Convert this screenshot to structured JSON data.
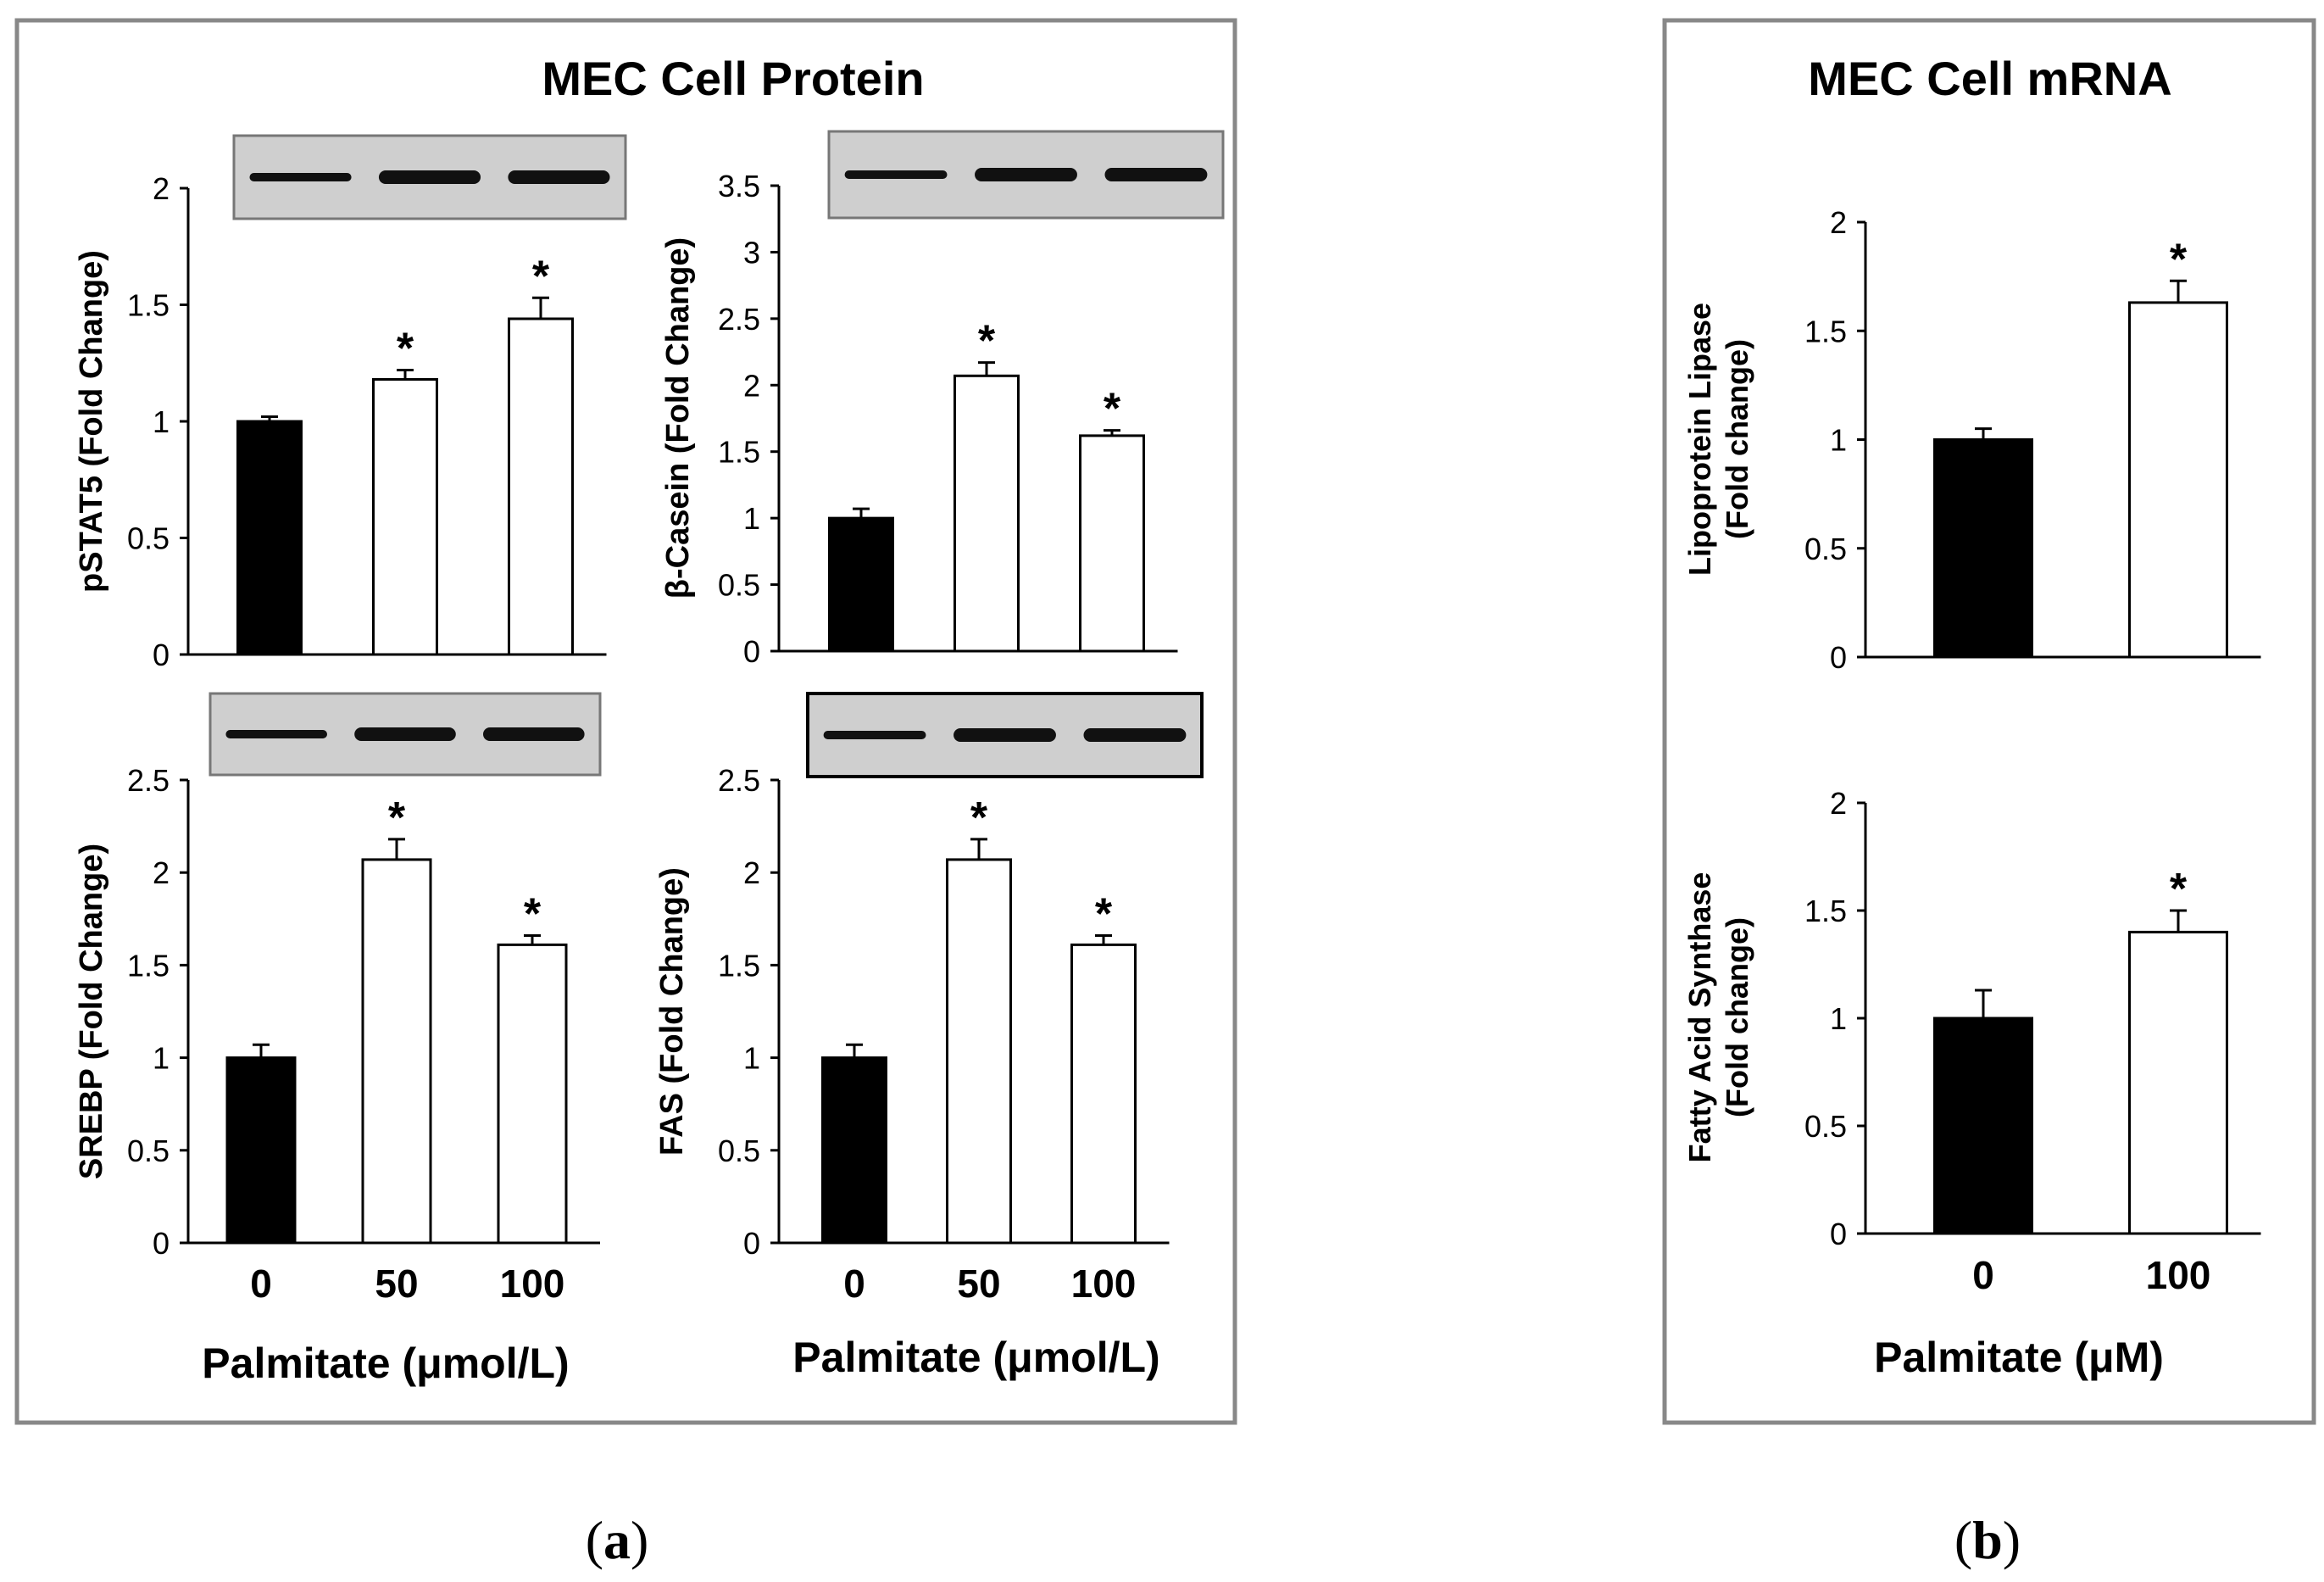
{
  "panel_a": {
    "title": "MEC Cell Protein",
    "xlabel": "Palmitate (μmol/L)",
    "caption": {
      "open": "(",
      "letter": "a",
      "close": ")"
    }
  },
  "panel_b": {
    "title": "MEC Cell mRNA",
    "xlabel": "Palmitate (μM)",
    "caption": {
      "open": "(",
      "letter": "b",
      "close": ")"
    }
  },
  "colors": {
    "control_bar": "#000000",
    "treated_bar": "#ffffff",
    "frame": "#888888",
    "blot_bg": "#cfcfcf",
    "band": "#111111"
  },
  "chart_data": [
    {
      "id": "pstat5",
      "type": "bar",
      "panel": "a",
      "ylabel": "pSTAT5 (Fold Change)",
      "categories": [
        "0",
        "50",
        "100"
      ],
      "values": [
        1.0,
        1.18,
        1.44
      ],
      "errors": [
        0.02,
        0.04,
        0.09
      ],
      "significant": [
        false,
        true,
        true
      ],
      "yticks": [
        "0",
        "0.5",
        "1",
        "1.5",
        "2"
      ],
      "ylim": [
        0,
        2
      ],
      "western_blot": true,
      "show_xticks": false
    },
    {
      "id": "casein",
      "type": "bar",
      "panel": "a",
      "ylabel": "β-Casein (Fold Change)",
      "categories": [
        "0",
        "50",
        "100"
      ],
      "values": [
        1.0,
        2.07,
        1.62
      ],
      "errors": [
        0.07,
        0.1,
        0.04
      ],
      "significant": [
        false,
        true,
        true
      ],
      "yticks": [
        "0",
        "0.5",
        "1",
        "1.5",
        "2",
        "2.5",
        "3",
        "3.5"
      ],
      "ylim": [
        0,
        3.5
      ],
      "western_blot": true,
      "show_xticks": false
    },
    {
      "id": "srebp",
      "type": "bar",
      "panel": "a",
      "ylabel": "SREBP (Fold Change)",
      "categories": [
        "0",
        "50",
        "100"
      ],
      "values": [
        1.0,
        2.07,
        1.61
      ],
      "errors": [
        0.07,
        0.11,
        0.05
      ],
      "significant": [
        false,
        true,
        true
      ],
      "yticks": [
        "0",
        "0.5",
        "1",
        "1.5",
        "2",
        "2.5"
      ],
      "ylim": [
        0,
        2.5
      ],
      "western_blot": true,
      "show_xticks": true
    },
    {
      "id": "fas",
      "type": "bar",
      "panel": "a",
      "ylabel": "FAS (Fold Change)",
      "categories": [
        "0",
        "50",
        "100"
      ],
      "values": [
        1.0,
        2.07,
        1.61
      ],
      "errors": [
        0.07,
        0.11,
        0.05
      ],
      "significant": [
        false,
        true,
        true
      ],
      "yticks": [
        "0",
        "0.5",
        "1",
        "1.5",
        "2",
        "2.5"
      ],
      "ylim": [
        0,
        2.5
      ],
      "western_blot": true,
      "show_xticks": true
    },
    {
      "id": "lpl",
      "type": "bar",
      "panel": "b",
      "ylabel": "Lipoprotein Lipase",
      "ylabel2": "(Fold change)",
      "categories": [
        "0",
        "100"
      ],
      "values": [
        1.0,
        1.63
      ],
      "errors": [
        0.05,
        0.1
      ],
      "significant": [
        false,
        true
      ],
      "yticks": [
        "0",
        "0.5",
        "1",
        "1.5",
        "2"
      ],
      "ylim": [
        0,
        2
      ],
      "western_blot": false,
      "show_xticks": false
    },
    {
      "id": "fasn",
      "type": "bar",
      "panel": "b",
      "ylabel": "Fatty Acid Synthase",
      "ylabel2": "(Fold change)",
      "categories": [
        "0",
        "100"
      ],
      "values": [
        1.0,
        1.4
      ],
      "errors": [
        0.13,
        0.1
      ],
      "significant": [
        false,
        true
      ],
      "yticks": [
        "0",
        "0.5",
        "1",
        "1.5",
        "2"
      ],
      "ylim": [
        0,
        2
      ],
      "western_blot": false,
      "show_xticks": true
    }
  ]
}
